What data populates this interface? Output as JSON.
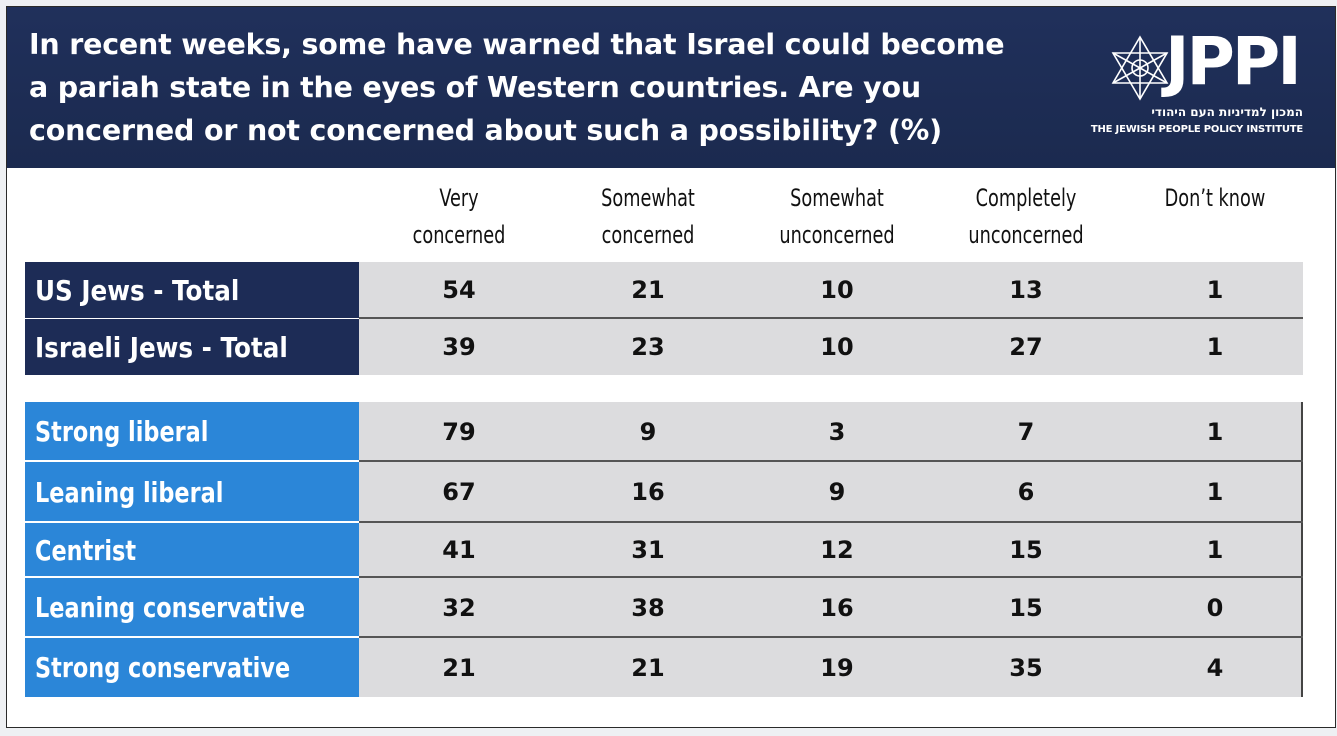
{
  "title_lines": [
    "In recent weeks, some have warned that Israel could become",
    "a pariah state in the eyes of Western countries. Are you",
    "concerned or not concerned about such a possibility? (%)"
  ],
  "logo": {
    "wordmark": "JPPI",
    "hebrew": "המכון למדיניות העם היהודי",
    "english": "THE JEWISH PEOPLE POLICY INSTITUTE",
    "icon": "star-of-david-icon"
  },
  "colors": {
    "header_bg": "#1b2a4f",
    "total_label_bg": "#1d2c56",
    "segment_label_bg": "#2b86d8",
    "cell_bg": "#dcdcde"
  },
  "chart_data": {
    "type": "table",
    "title": "In recent weeks, some have warned that Israel could become a pariah state in the eyes of Western countries. Are you concerned or not concerned about such a possibility? (%)",
    "columns": [
      [
        "Very",
        "concerned"
      ],
      [
        "Somewhat",
        "concerned"
      ],
      [
        "Somewhat",
        "unconcerned"
      ],
      [
        "Completely",
        "unconcerned"
      ],
      [
        "Don’t know",
        ""
      ]
    ],
    "totals": [
      {
        "label": "US Jews - Total",
        "values": [
          54,
          21,
          10,
          13,
          1
        ]
      },
      {
        "label": "Israeli Jews - Total",
        "values": [
          39,
          23,
          10,
          27,
          1
        ]
      }
    ],
    "segments": [
      {
        "label": "Strong liberal",
        "values": [
          79,
          9,
          3,
          7,
          1
        ]
      },
      {
        "label": "Leaning liberal",
        "values": [
          67,
          16,
          9,
          6,
          1
        ]
      },
      {
        "label": "Centrist",
        "values": [
          41,
          31,
          12,
          15,
          1
        ]
      },
      {
        "label": "Leaning conservative",
        "values": [
          32,
          38,
          16,
          15,
          0
        ]
      },
      {
        "label": "Strong conservative",
        "values": [
          21,
          21,
          19,
          35,
          4
        ]
      }
    ]
  }
}
